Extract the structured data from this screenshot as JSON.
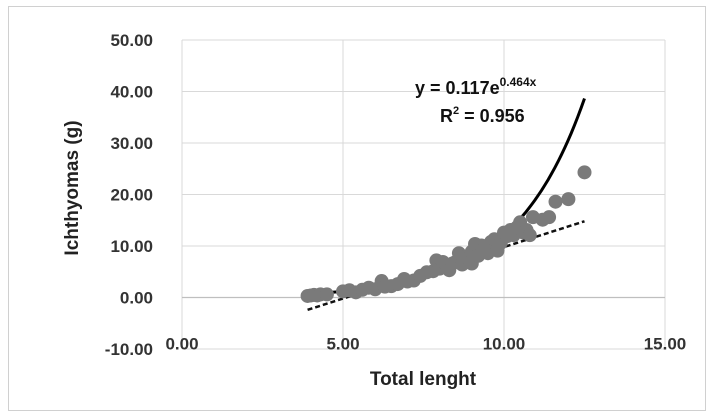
{
  "chart_data": {
    "type": "scatter",
    "title": "",
    "xlabel": "Total lenght",
    "ylabel": "Ichthyomas (g)",
    "xlim": [
      0,
      15
    ],
    "ylim": [
      -10,
      50
    ],
    "x_ticks": [
      "0.00",
      "5.00",
      "10.00",
      "15.00"
    ],
    "y_ticks": [
      "-10.00",
      "0.00",
      "10.00",
      "20.00",
      "30.00",
      "40.00",
      "50.00"
    ],
    "grid": true,
    "legend": "none",
    "points_color": "#7a7a7a",
    "series": [
      {
        "points": [
          [
            3.9,
            0.3
          ],
          [
            4.0,
            0.4
          ],
          [
            4.1,
            0.5
          ],
          [
            4.2,
            0.4
          ],
          [
            4.3,
            0.6
          ],
          [
            4.5,
            0.6
          ],
          [
            5.0,
            1.2
          ],
          [
            5.2,
            1.4
          ],
          [
            5.4,
            1.0
          ],
          [
            5.6,
            1.5
          ],
          [
            5.8,
            1.9
          ],
          [
            6.0,
            1.6
          ],
          [
            6.2,
            3.2
          ],
          [
            6.3,
            2.1
          ],
          [
            6.5,
            2.2
          ],
          [
            6.7,
            2.6
          ],
          [
            6.9,
            3.6
          ],
          [
            7.0,
            3.1
          ],
          [
            7.2,
            3.3
          ],
          [
            7.4,
            4.2
          ],
          [
            7.6,
            4.9
          ],
          [
            7.8,
            5.1
          ],
          [
            7.9,
            7.2
          ],
          [
            8.0,
            5.6
          ],
          [
            8.1,
            6.9
          ],
          [
            8.2,
            6.4
          ],
          [
            8.3,
            5.3
          ],
          [
            8.4,
            6.6
          ],
          [
            8.5,
            6.9
          ],
          [
            8.6,
            8.6
          ],
          [
            8.7,
            6.4
          ],
          [
            8.8,
            7.9
          ],
          [
            8.9,
            7.6
          ],
          [
            9.0,
            8.9
          ],
          [
            9.0,
            6.6
          ],
          [
            9.1,
            10.4
          ],
          [
            9.2,
            8.1
          ],
          [
            9.3,
            10.1
          ],
          [
            9.4,
            9.6
          ],
          [
            9.5,
            8.6
          ],
          [
            9.6,
            10.8
          ],
          [
            9.7,
            11.3
          ],
          [
            9.8,
            9.1
          ],
          [
            9.9,
            10.6
          ],
          [
            10.0,
            12.6
          ],
          [
            10.1,
            11.9
          ],
          [
            10.2,
            13.1
          ],
          [
            10.3,
            12.1
          ],
          [
            10.4,
            13.6
          ],
          [
            10.5,
            14.6
          ],
          [
            10.6,
            12.6
          ],
          [
            10.7,
            13.1
          ],
          [
            10.8,
            12.1
          ],
          [
            10.9,
            15.6
          ],
          [
            11.2,
            15.1
          ],
          [
            11.4,
            15.6
          ],
          [
            11.6,
            18.6
          ],
          [
            12.0,
            19.1
          ],
          [
            12.5,
            24.3
          ]
        ]
      }
    ],
    "trendlines": [
      {
        "kind": "exponential",
        "a": 0.117,
        "b": 0.464,
        "x_range": [
          4.3,
          12.5
        ],
        "style": "solid"
      },
      {
        "kind": "linear",
        "from": [
          3.9,
          -2.4
        ],
        "to": [
          12.5,
          14.8
        ],
        "style": "dashed"
      }
    ],
    "annotation": {
      "equation_prefix": "y = 0.117e",
      "equation_exponent": "0.464x",
      "r2_prefix": "R",
      "r2_sup": "2",
      "r2_value": " = 0.956"
    }
  }
}
